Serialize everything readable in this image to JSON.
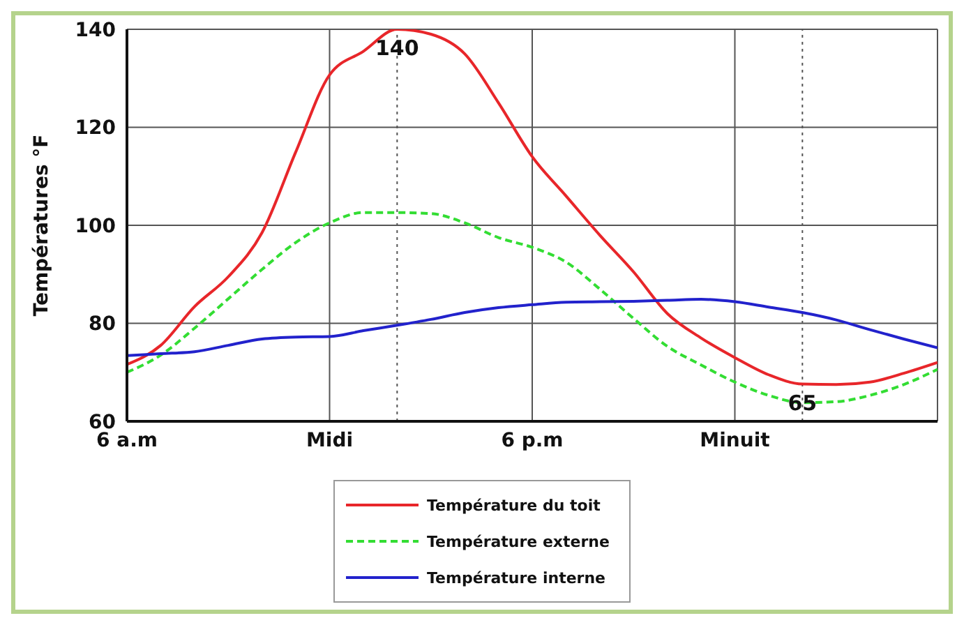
{
  "chart_data": {
    "type": "line",
    "ylabel": "Températures °F",
    "categories": [
      "6 a.m",
      null,
      null,
      null,
      null,
      null,
      "Midi",
      null,
      null,
      null,
      null,
      null,
      "6 p.m",
      null,
      null,
      null,
      null,
      null,
      "Minuit",
      null,
      null,
      null,
      null,
      null,
      null
    ],
    "ylim": [
      60,
      140
    ],
    "yticks": [
      60,
      80,
      100,
      120,
      140
    ],
    "grid": true,
    "legend": "bottom",
    "marker": "none",
    "series": [
      {
        "name": "Température du toit",
        "color": "#e8262a",
        "line_style": "solid",
        "values": [
          71.6,
          75.5,
          83.4,
          89.5,
          98.5,
          115,
          130.7,
          135.5,
          140,
          139,
          135,
          125,
          114,
          106,
          98,
          90.5,
          82,
          77,
          73,
          69.5,
          67.6,
          67.5,
          68,
          69.8,
          72
        ]
      },
      {
        "name": "Température externe",
        "color": "#33dd33",
        "line_style": "dashed",
        "values": [
          70,
          73.5,
          79,
          85,
          91,
          96.5,
          100.5,
          102.6,
          102.6,
          102.4,
          100.5,
          97.5,
          95.5,
          92.5,
          87,
          81,
          75.3,
          71.5,
          68,
          65.3,
          63.8,
          64,
          65.3,
          67.5,
          70.6
        ]
      },
      {
        "name": "Température interne",
        "color": "#2222cc",
        "line_style": "solid",
        "values": [
          73.4,
          73.8,
          74.2,
          75.5,
          76.8,
          77.2,
          77.3,
          78.5,
          79.6,
          80.8,
          82.2,
          83.2,
          83.8,
          84.3,
          84.4,
          84.5,
          84.7,
          84.9,
          84.4,
          83.3,
          82.2,
          80.7,
          78.7,
          76.8,
          75
        ]
      }
    ],
    "annotations": [
      {
        "text": "140",
        "y": 140
      },
      {
        "text": "65",
        "y": 65
      }
    ]
  }
}
